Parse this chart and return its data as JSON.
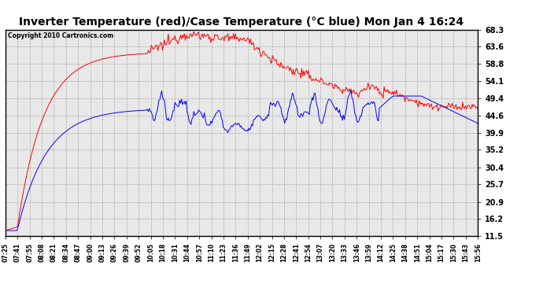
{
  "title": "Inverter Temperature (red)/Case Temperature (°C blue) Mon Jan 4 16:24",
  "copyright": "Copyright 2010 Cartronics.com",
  "yticks": [
    11.5,
    16.2,
    20.9,
    25.7,
    30.4,
    35.2,
    39.9,
    44.6,
    49.4,
    54.1,
    58.8,
    63.6,
    68.3
  ],
  "xtick_labels": [
    "07:25",
    "07:41",
    "07:55",
    "08:08",
    "08:21",
    "08:34",
    "08:47",
    "09:00",
    "09:13",
    "09:26",
    "09:39",
    "09:52",
    "10:05",
    "10:18",
    "10:31",
    "10:44",
    "10:57",
    "11:10",
    "11:23",
    "11:36",
    "11:49",
    "12:02",
    "12:15",
    "12:28",
    "12:41",
    "12:54",
    "13:07",
    "13:20",
    "13:33",
    "13:46",
    "13:59",
    "14:12",
    "14:25",
    "14:38",
    "14:51",
    "15:04",
    "15:17",
    "15:30",
    "15:43",
    "15:56"
  ],
  "ymin": 11.5,
  "ymax": 68.3,
  "bg_color": "#ffffff",
  "plot_bg_color": "#e8e8e8",
  "grid_color": "#aaaaaa",
  "red_color": "#ff0000",
  "blue_color": "#0000ff",
  "title_fontsize": 10,
  "tick_fontsize": 7,
  "xtick_fontsize": 5.5
}
